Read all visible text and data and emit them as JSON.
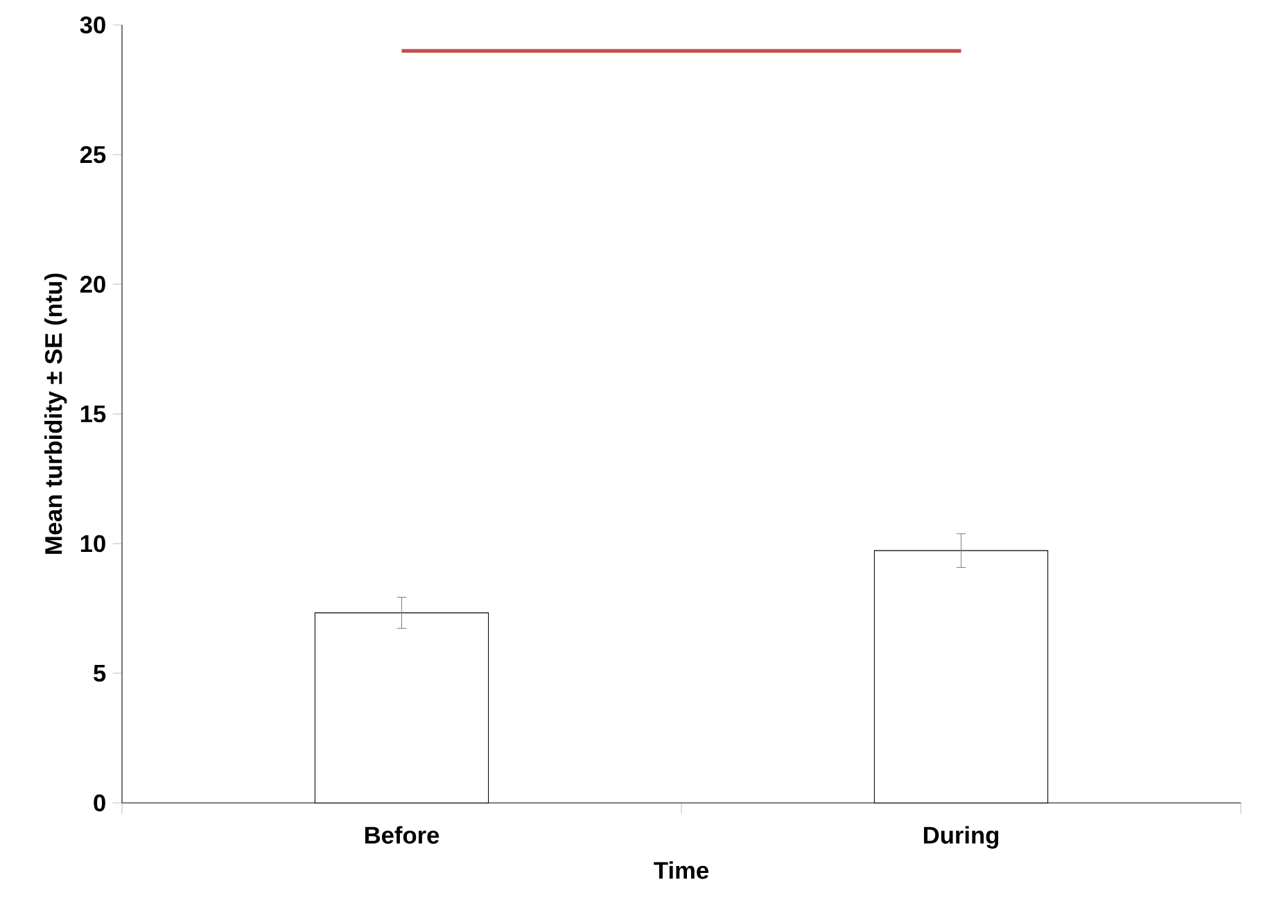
{
  "chart_data": {
    "type": "bar",
    "xlabel": "Time",
    "ylabel": "Mean turbidity ± SE (ntu)",
    "categories": [
      "Before",
      "During"
    ],
    "series": [
      {
        "color": "#ffffff",
        "values": [
          7.33,
          9.73
        ],
        "errors": [
          0.6,
          0.65
        ]
      },
      {
        "type": "line",
        "color": "#c0504d",
        "values": [
          29,
          29
        ]
      }
    ],
    "ylim": [
      0,
      30
    ],
    "yticks": [
      0,
      5,
      10,
      15,
      20,
      25,
      30
    ],
    "grid": false
  }
}
